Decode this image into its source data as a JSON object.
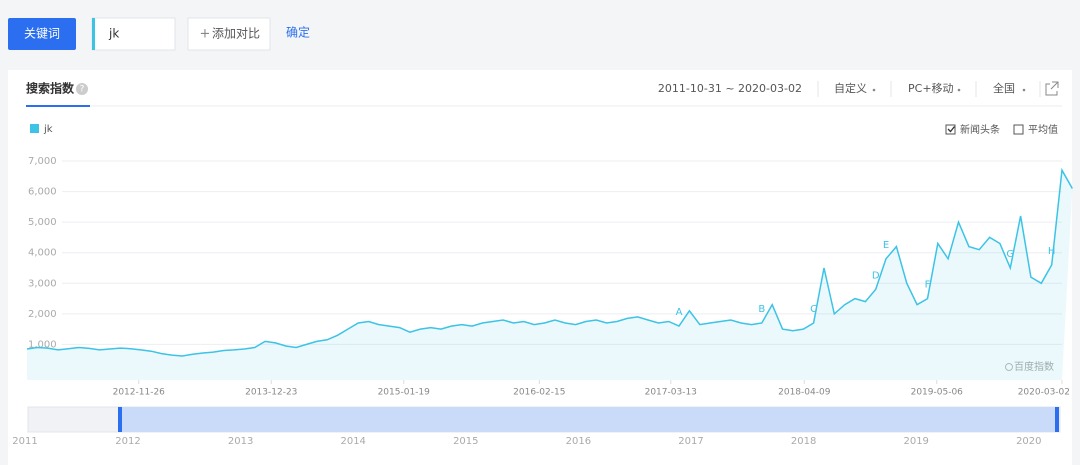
{
  "toolbar": {
    "keyword_button": "关键词",
    "input": "jk",
    "add_compare": "添加对比",
    "confirm": "确定"
  },
  "panel": {
    "tab": "搜索指数",
    "date_range": "2011-10-31 ~ 2020-03-02",
    "custom": "自定义",
    "device": "PC+移动",
    "region": "全国",
    "news_toggle": "新闻头条",
    "news_checked": true,
    "average_toggle": "平均值",
    "average_checked": false,
    "watermark": "百度指数"
  },
  "chart_data": {
    "type": "line",
    "series": [
      {
        "name": "jk",
        "color": "#3cc3e6",
        "values": [
          850,
          900,
          880,
          820,
          860,
          900,
          870,
          820,
          850,
          880,
          860,
          820,
          780,
          700,
          650,
          620,
          680,
          720,
          750,
          800,
          820,
          850,
          900,
          1100,
          1050,
          950,
          900,
          1000,
          1100,
          1150,
          1300,
          1500,
          1700,
          1750,
          1650,
          1600,
          1550,
          1400,
          1500,
          1550,
          1500,
          1600,
          1650,
          1600,
          1700,
          1750,
          1800,
          1700,
          1750,
          1650,
          1700,
          1800,
          1700,
          1650,
          1750,
          1800,
          1700,
          1750,
          1850,
          1900,
          1800,
          1700,
          1750,
          1600,
          2100,
          1650,
          1700,
          1750,
          1800,
          1700,
          1650,
          1700,
          2300,
          1500,
          1450,
          1500,
          1700,
          3500,
          2000,
          2300,
          2500,
          2400,
          2800,
          3800,
          4200,
          3000,
          2300,
          2500,
          4300,
          3800,
          5000,
          4200,
          4100,
          4500,
          4300,
          3500,
          5200,
          3200,
          3000,
          3600,
          6700,
          6100
        ]
      }
    ],
    "xlim": [
      0,
      100
    ],
    "xticks": [
      {
        "value": 10.8,
        "label": "2012-11-26"
      },
      {
        "value": 23.6,
        "label": "2013-12-23"
      },
      {
        "value": 36.4,
        "label": "2015-01-19"
      },
      {
        "value": 49.5,
        "label": "2016-02-15"
      },
      {
        "value": 62.2,
        "label": "2017-03-13"
      },
      {
        "value": 75.1,
        "label": "2018-04-09"
      },
      {
        "value": 87.9,
        "label": "2019-05-06"
      },
      {
        "value": 100,
        "label": "2020-03-02"
      }
    ],
    "ylim": [
      0,
      7000
    ],
    "yticks": [
      {
        "value": 1000,
        "label": "1,000"
      },
      {
        "value": 2000,
        "label": "2,000"
      },
      {
        "value": 3000,
        "label": "3,000"
      },
      {
        "value": 4000,
        "label": "4,000"
      },
      {
        "value": 5000,
        "label": "5,000"
      },
      {
        "value": 6000,
        "label": "6,000"
      },
      {
        "value": 7000,
        "label": "7,000"
      }
    ],
    "grid": true,
    "annotations": [
      {
        "label": "A",
        "x": 63
      },
      {
        "label": "B",
        "x": 71
      },
      {
        "label": "C",
        "x": 76
      },
      {
        "label": "D",
        "x": 82
      },
      {
        "label": "E",
        "x": 83
      },
      {
        "label": "F",
        "x": 87
      },
      {
        "label": "G",
        "x": 95
      },
      {
        "label": "H",
        "x": 99
      }
    ]
  },
  "overview": {
    "years": [
      "2011",
      "2012",
      "2013",
      "2014",
      "2015",
      "2016",
      "2017",
      "2018",
      "2019",
      "2020"
    ]
  }
}
